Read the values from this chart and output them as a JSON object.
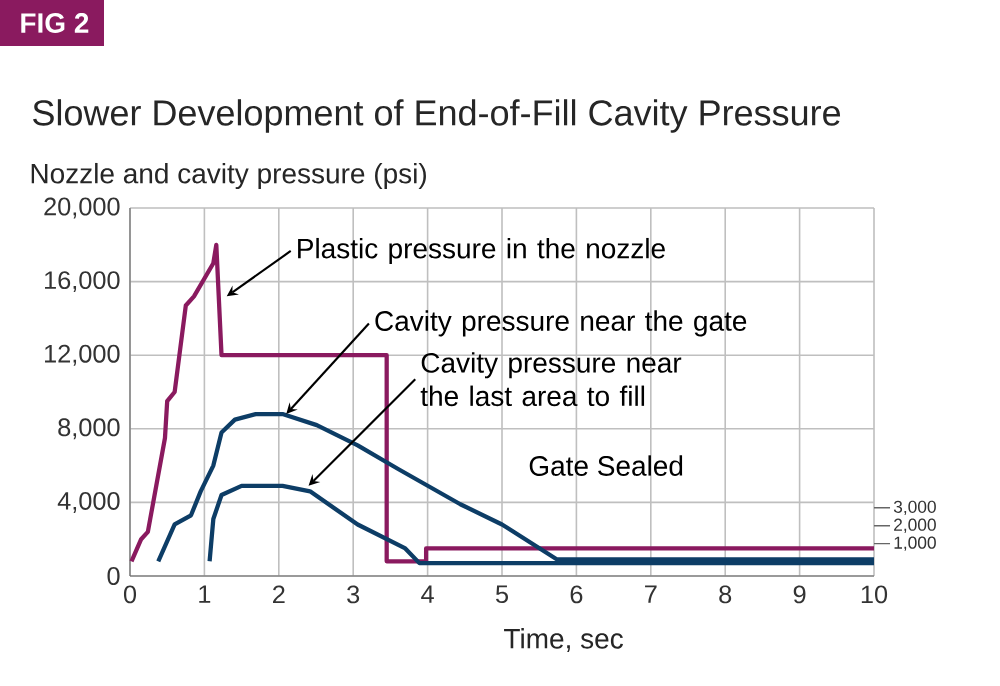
{
  "chart_data": {
    "type": "line",
    "title": "Slower Development of End-of-Fill Cavity Pressure",
    "ylabel": "Nozzle and cavity pressure (psi)",
    "xlabel": "Time, sec",
    "xlim": [
      0,
      10
    ],
    "xticks": [
      0,
      1,
      2,
      3,
      4,
      5,
      6,
      7,
      8,
      9,
      10
    ],
    "ylim": [
      0,
      20000
    ],
    "yticks": [
      {
        "value": 0,
        "label": "0"
      },
      {
        "value": 4000,
        "label": "4,000"
      },
      {
        "value": 8000,
        "label": "8,000"
      },
      {
        "value": 12000,
        "label": "12,000"
      },
      {
        "value": 16000,
        "label": "16,000"
      },
      {
        "value": 20000,
        "label": "20,000"
      }
    ],
    "y2lim": [
      -800,
      19700
    ],
    "y2ticks": [
      {
        "value": 1000,
        "label": "1,000"
      },
      {
        "value": 2000,
        "label": "2,000"
      },
      {
        "value": 3000,
        "label": "3,000"
      }
    ],
    "grid": true,
    "marker": "none",
    "line_style": "solid",
    "series": [
      {
        "color": "#8a1a5f",
        "x": [
          0.02,
          0.15,
          0.24,
          0.47,
          0.5,
          0.6,
          0.75,
          0.86,
          1.12,
          1.16,
          1.23,
          3.45,
          3.45,
          3.98,
          3.98,
          10
        ],
        "values": [
          800,
          2000,
          2400,
          7500,
          9500,
          10000,
          14700,
          15200,
          17000,
          18000,
          12000,
          12000,
          800,
          800,
          1500,
          1500
        ]
      },
      {
        "color": "#0d3d66",
        "x": [
          0.38,
          0.6,
          0.82,
          0.95,
          1.12,
          1.23,
          1.41,
          1.69,
          2.05,
          2.51,
          3.06,
          3.61,
          4.44,
          5.0,
          5.74,
          10
        ],
        "values": [
          800,
          2800,
          3300,
          4600,
          6000,
          7800,
          8500,
          8800,
          8800,
          8200,
          7100,
          5800,
          3900,
          2800,
          900,
          900
        ]
      },
      {
        "color": "#0d3d66",
        "x": [
          1.07,
          1.12,
          1.23,
          1.5,
          2.05,
          2.42,
          3.06,
          3.7,
          3.89,
          10
        ],
        "values": [
          800,
          3100,
          4400,
          4900,
          4900,
          4600,
          2800,
          1500,
          700,
          700
        ]
      }
    ],
    "annotations": [
      "FIG 2",
      {
        "text": "Plastic pressure in the nozzle",
        "x": 1.3,
        "y": 15200
      },
      {
        "text": "Cavity pressure near the gate",
        "x": 2.1,
        "y": 8800
      },
      {
        "text": "Cavity pressure near the last area to fill",
        "x": 2.4,
        "y": 4900
      },
      "Gate Sealed"
    ]
  }
}
